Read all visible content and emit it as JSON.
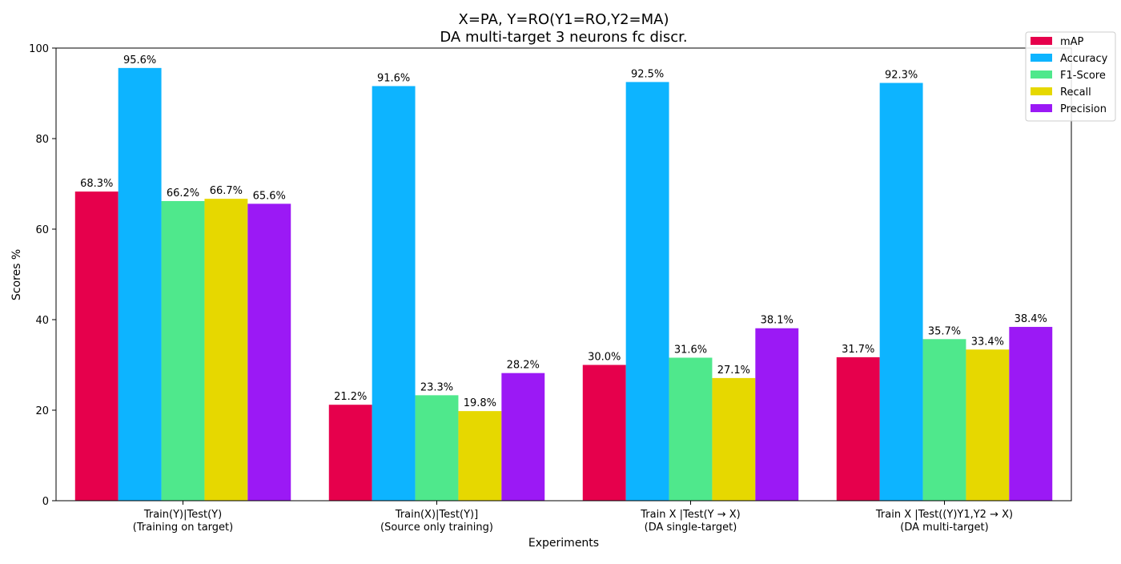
{
  "chart_data": {
    "type": "bar",
    "title": "X=PA, Y=RO(Y1=RO,Y2=MA)",
    "subtitle": "DA multi-target 3 neurons fc discr.",
    "xlabel": "Experiments",
    "ylabel": "Scores %",
    "ylim": [
      0,
      100
    ],
    "yticks": [
      0,
      20,
      40,
      60,
      80,
      100
    ],
    "grid": false,
    "legend_position": "top-right",
    "categories": [
      [
        "Train(Y)|Test(Y)",
        "(Training on target)"
      ],
      [
        "Train(X)|Test(Y)]",
        "(Source only training)"
      ],
      [
        "Train X |Test(Y → X)",
        "(DA single-target)"
      ],
      [
        "Train X |Test((Y)Y1,Y2 → X)",
        "(DA multi-target)"
      ]
    ],
    "series": [
      {
        "name": "mAP",
        "color": "#e6004c",
        "values": [
          68.3,
          21.2,
          30.0,
          31.7
        ],
        "labels": [
          "68.3%",
          "21.2%",
          "30.0%",
          "31.7%"
        ]
      },
      {
        "name": "Accuracy",
        "color": "#0db4ff",
        "values": [
          95.6,
          91.6,
          92.5,
          92.3
        ],
        "labels": [
          "95.6%",
          "91.6%",
          "92.5%",
          "92.3%"
        ]
      },
      {
        "name": "F1-Score",
        "color": "#4fe88c",
        "values": [
          66.2,
          23.3,
          31.6,
          35.7
        ],
        "labels": [
          "66.2%",
          "23.3%",
          "31.6%",
          "35.7%"
        ]
      },
      {
        "name": "Recall",
        "color": "#e6d800",
        "values": [
          66.7,
          19.8,
          27.1,
          33.4
        ],
        "labels": [
          "66.7%",
          "19.8%",
          "27.1%",
          "33.4%"
        ]
      },
      {
        "name": "Precision",
        "color": "#9b19f5",
        "values": [
          65.6,
          28.2,
          38.1,
          38.4
        ],
        "labels": [
          "65.6%",
          "28.2%",
          "38.1%",
          "38.4%"
        ]
      }
    ]
  }
}
